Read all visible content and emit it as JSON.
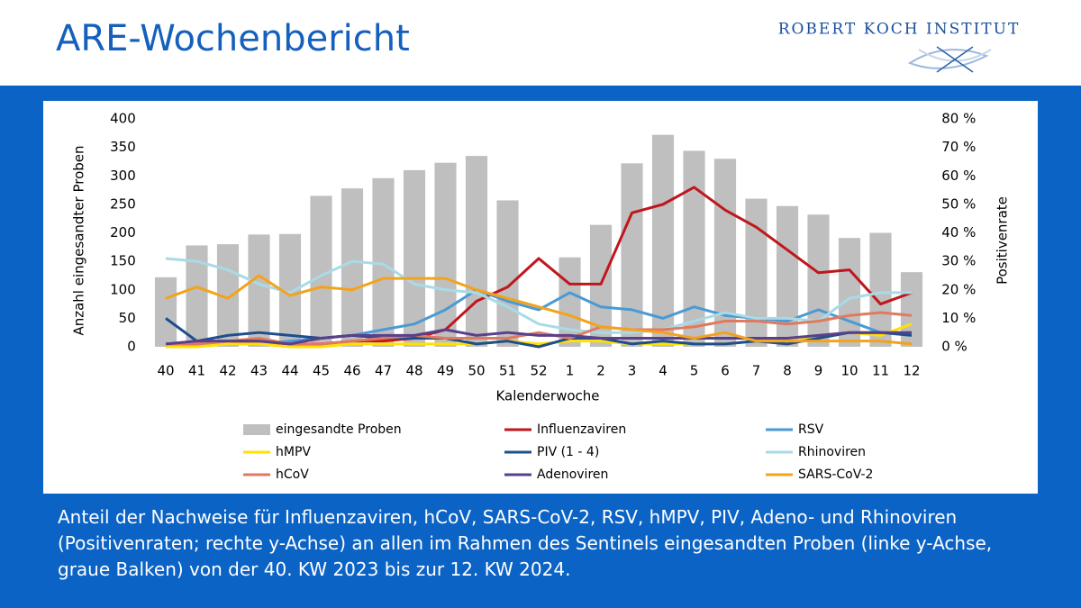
{
  "header": {
    "title": "ARE-Wochenbericht",
    "logo": "ROBERT KOCH INSTITUT"
  },
  "chart_data": {
    "type": "bar",
    "x_label": "Kalenderwoche",
    "y_label": "Anzahl eingesandter Proben",
    "y2_label": "Positivenrate",
    "categories": [
      "40",
      "41",
      "42",
      "43",
      "44",
      "45",
      "46",
      "47",
      "48",
      "49",
      "50",
      "51",
      "52",
      "1",
      "2",
      "3",
      "4",
      "5",
      "6",
      "7",
      "8",
      "9",
      "10",
      "11",
      "12"
    ],
    "ylim": [
      0,
      400
    ],
    "yticks": [
      0,
      50,
      100,
      150,
      200,
      250,
      300,
      350,
      400
    ],
    "y2lim": [
      0,
      80
    ],
    "y2ticks": [
      {
        "value": 0,
        "label": "0 %"
      },
      {
        "value": 10,
        "label": "10 %"
      },
      {
        "value": 20,
        "label": "20 %"
      },
      {
        "value": 30,
        "label": "30 %"
      },
      {
        "value": 40,
        "label": "40 %"
      },
      {
        "value": 50,
        "label": "50 %"
      },
      {
        "value": 60,
        "label": "60 %"
      },
      {
        "value": 70,
        "label": "70 %"
      },
      {
        "value": 80,
        "label": "80 %"
      }
    ],
    "grid": false,
    "series": [
      {
        "name": "eingesandte Proben",
        "type": "bar",
        "color": "#bfbfbf",
        "values": [
          122,
          178,
          180,
          197,
          198,
          265,
          278,
          296,
          310,
          323,
          335,
          257,
          0,
          157,
          214,
          322,
          372,
          344,
          330,
          260,
          247,
          232,
          191,
          200,
          131
        ]
      },
      {
        "name": "Influenzaviren",
        "type": "line",
        "axis": "y2",
        "color": "#c0161e",
        "values": [
          1,
          1,
          1,
          1.5,
          1,
          1,
          2,
          2,
          3,
          6,
          16,
          21,
          31,
          22,
          22,
          47,
          50,
          56,
          48,
          42,
          34,
          26,
          27,
          15,
          19
        ]
      },
      {
        "name": "RSV",
        "type": "line",
        "axis": "y2",
        "color": "#4a9ad4",
        "values": [
          1,
          1,
          1,
          1,
          2,
          3,
          4,
          6,
          8,
          13,
          20,
          16,
          13,
          19,
          14,
          13,
          10,
          14,
          11,
          10,
          9,
          13,
          9,
          5,
          5
        ]
      },
      {
        "name": "hMPV",
        "type": "line",
        "axis": "y2",
        "color": "#ffe000",
        "values": [
          0,
          0,
          1,
          1,
          0,
          0,
          1,
          1,
          1,
          1,
          1,
          2,
          1,
          2,
          2,
          1,
          1,
          1,
          1,
          2,
          2,
          3,
          5,
          4,
          8
        ]
      },
      {
        "name": "PIV (1 - 4)",
        "type": "line",
        "axis": "y2",
        "color": "#1f4e8c",
        "values": [
          10,
          2,
          4,
          5,
          4,
          3,
          4,
          3,
          3,
          3,
          1,
          2,
          0,
          3,
          3,
          1,
          2,
          1,
          1,
          2,
          1,
          3,
          5,
          5,
          4
        ]
      },
      {
        "name": "Rhinoviren",
        "type": "line",
        "axis": "y2",
        "color": "#a8dbe6",
        "values": [
          31,
          30,
          27,
          22,
          19,
          25,
          30,
          29,
          22,
          20,
          19,
          14,
          8,
          6,
          5,
          5,
          6,
          9,
          12,
          10,
          10,
          9,
          17,
          19,
          19
        ]
      },
      {
        "name": "hCoV",
        "type": "line",
        "axis": "y2",
        "color": "#e07a5f",
        "values": [
          1,
          1,
          2,
          3,
          1,
          1,
          2,
          3,
          4,
          3,
          3,
          3,
          5,
          3,
          7,
          6,
          6,
          7,
          9,
          9,
          8,
          9,
          11,
          12,
          11
        ]
      },
      {
        "name": "Adenoviren",
        "type": "line",
        "axis": "y2",
        "color": "#5a3f8a",
        "values": [
          1,
          2,
          2,
          2,
          1,
          3,
          4,
          4,
          4,
          6,
          4,
          5,
          4,
          4,
          3,
          3,
          3,
          3,
          3,
          3,
          3,
          4,
          5,
          5,
          5
        ]
      },
      {
        "name": "SARS-CoV-2",
        "type": "line",
        "axis": "y2",
        "color": "#f4a21c",
        "values": [
          17,
          21,
          17,
          25,
          18,
          21,
          20,
          24,
          24,
          24,
          20,
          17,
          14,
          11,
          7,
          6,
          5,
          3,
          5,
          2,
          2,
          2,
          2,
          2,
          1
        ]
      }
    ]
  },
  "caption": {
    "lines": [
      "Anteil der Nachweise für Influenzaviren, hCoV, SARS-CoV-2, RSV, hMPV, PIV, Adeno- und Rhinoviren",
      "(Positivenraten; rechte y-Achse) an allen im Rahmen des Sentinels eingesandten Proben (linke y-Achse,",
      "graue Balken) von der 40. KW 2023 bis zur 12. KW 2024."
    ]
  }
}
